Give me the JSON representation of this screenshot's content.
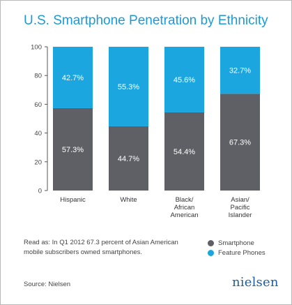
{
  "title": "U.S. Smartphone Penetration by Ethnicity",
  "chart_data": {
    "type": "bar",
    "stacked": true,
    "categories": [
      "Hispanic",
      "White",
      "Black/ African American",
      "Asian/ Pacific Islander"
    ],
    "category_lines": [
      [
        "Hispanic"
      ],
      [
        "White"
      ],
      [
        "Black/",
        "African",
        "American"
      ],
      [
        "Asian/",
        "Pacific",
        "Islander"
      ]
    ],
    "series": [
      {
        "name": "Smartphone",
        "values": [
          57.3,
          44.7,
          54.4,
          67.3
        ],
        "labels": [
          "57.3%",
          "44.7%",
          "54.4%",
          "67.3%"
        ],
        "color": "#5f6066"
      },
      {
        "name": "Feature Phones",
        "values": [
          42.7,
          55.3,
          45.6,
          32.7
        ],
        "labels": [
          "42.7%",
          "55.3%",
          "45.6%",
          "32.7%"
        ],
        "color": "#1ba6e0"
      }
    ],
    "ylim": [
      0,
      100
    ],
    "yticks": [
      0,
      20,
      40,
      60,
      80,
      100
    ],
    "legend_position": "bottom-right"
  },
  "note": "Read as: In Q1 2012 67.3 percent of Asian American mobile subscribers owned smartphones.",
  "legend": [
    {
      "label": "Smartphone",
      "color": "#5f6066"
    },
    {
      "label": "Feature Phones",
      "color": "#1ba6e0"
    }
  ],
  "source": "Source: Nielsen",
  "logo_text": "nielsen"
}
